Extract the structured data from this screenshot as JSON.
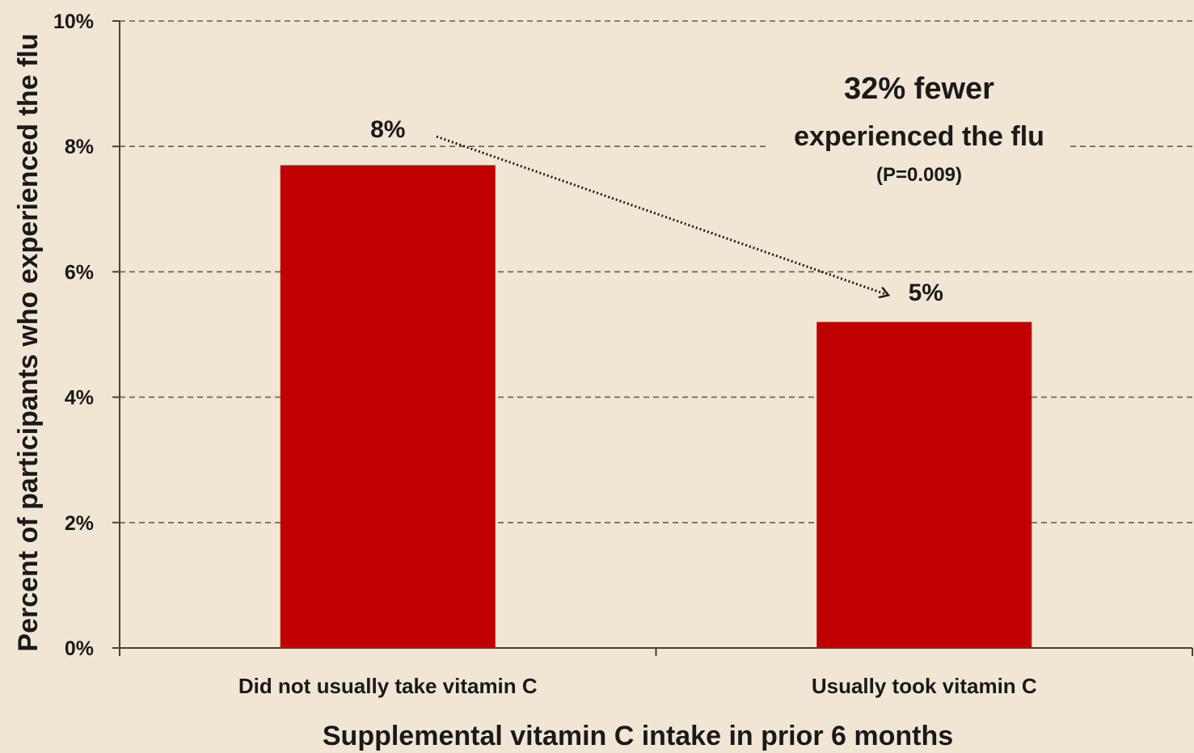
{
  "chart_data": {
    "type": "bar",
    "categories": [
      "Did not usually take vitamin C",
      "Usually took vitamin C"
    ],
    "values": [
      7.7,
      5.2
    ],
    "data_labels": [
      "8%",
      "5%"
    ],
    "xlabel": "Supplemental vitamin C intake in prior 6 months",
    "ylabel": "Percent of participants who experienced the flu",
    "ylim": [
      0,
      10
    ],
    "yticks": [
      0,
      2,
      4,
      6,
      8,
      10
    ],
    "ytick_labels": [
      "0%",
      "2%",
      "4%",
      "6%",
      "8%",
      "10%"
    ],
    "grid": true,
    "legend": "none",
    "bar_color": "#c00000",
    "background_color": "#f1e6d4",
    "annotation": {
      "line1": "32% fewer",
      "line2": "experienced the flu",
      "line3": "(P=0.009)"
    }
  }
}
